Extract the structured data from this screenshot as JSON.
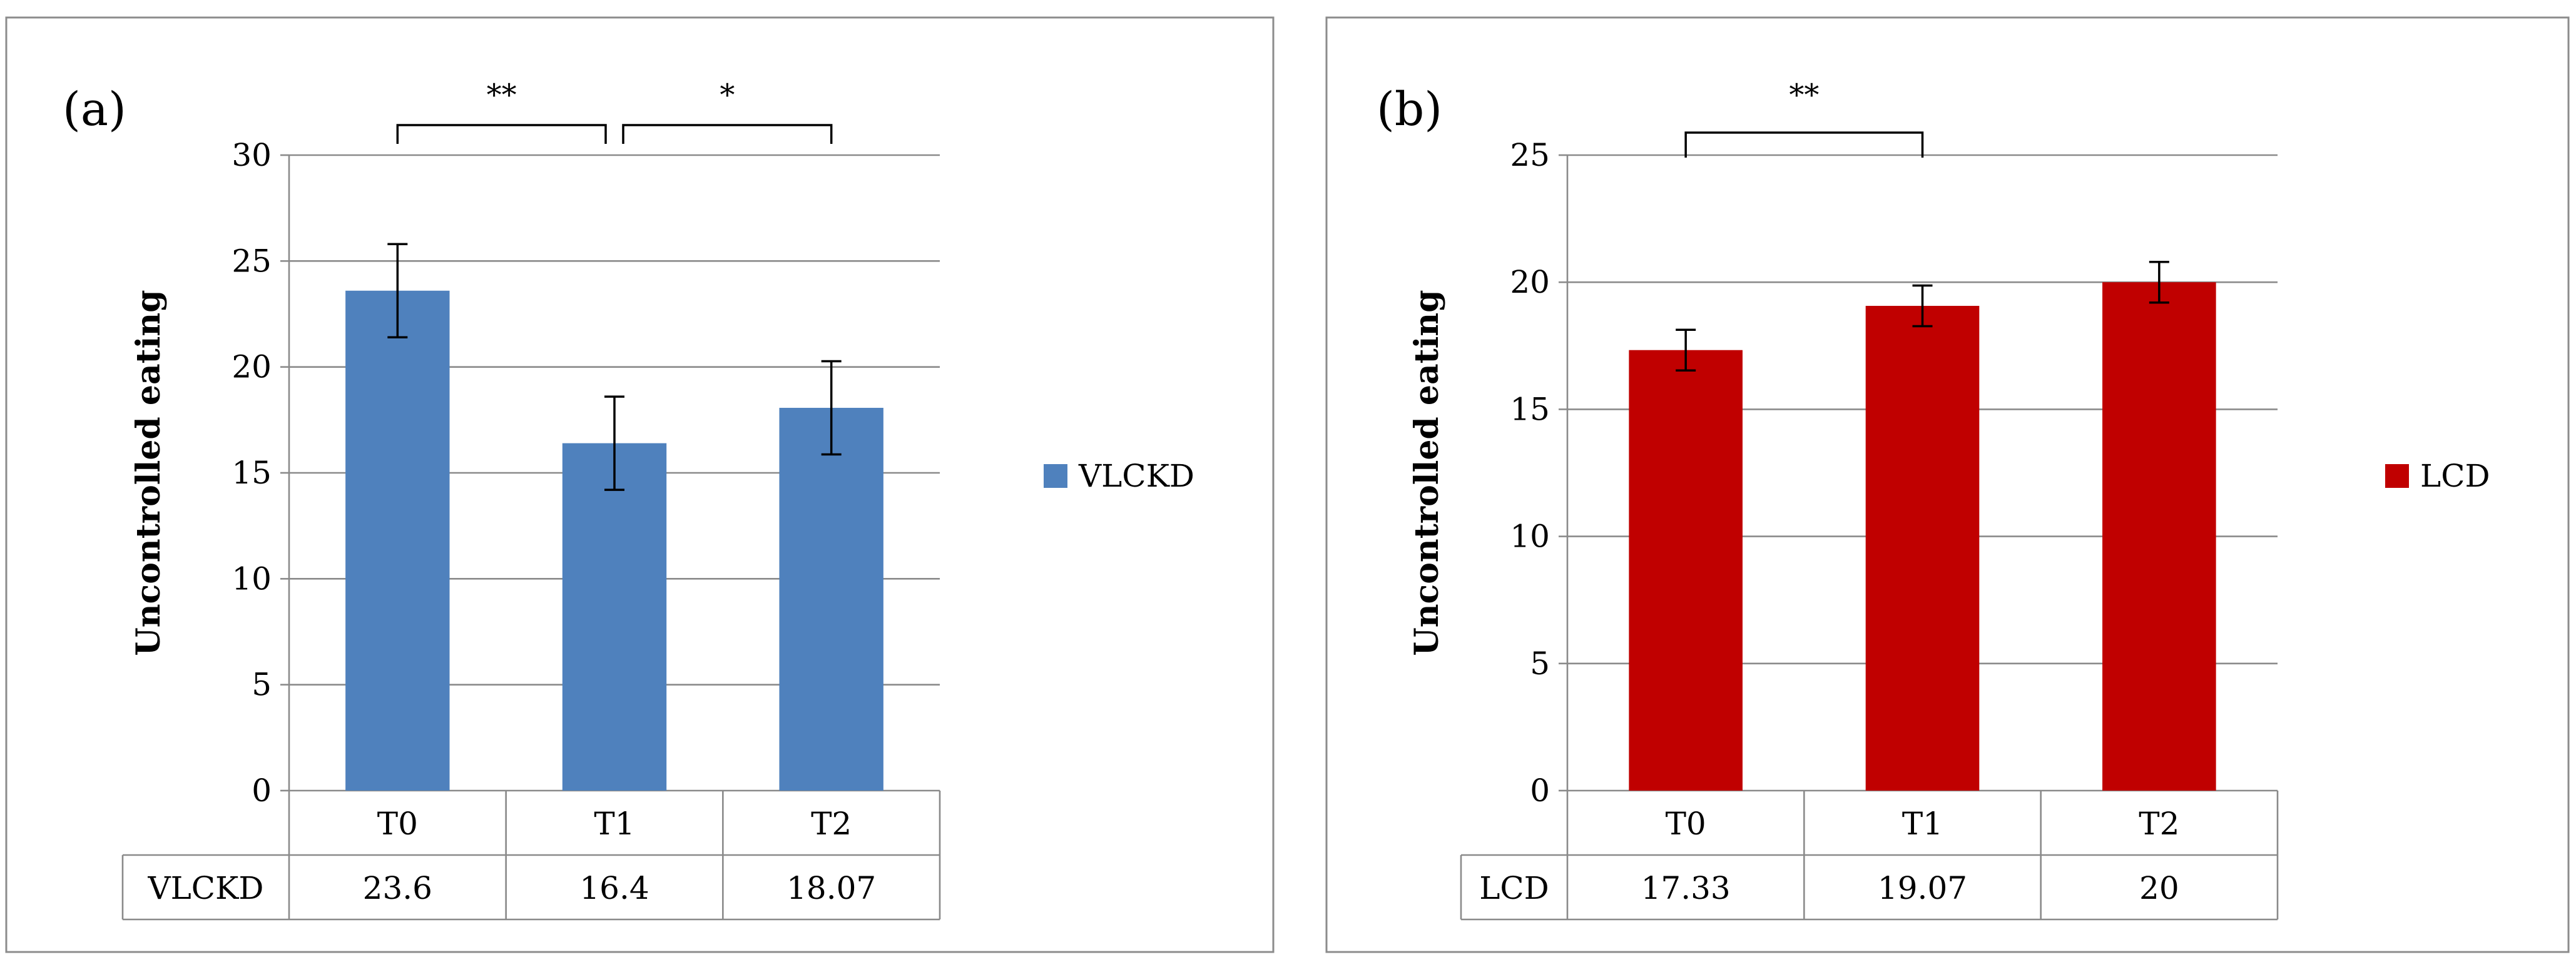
{
  "chart_data": [
    {
      "type": "bar",
      "panel_label": "(a)",
      "categories": [
        "T0",
        "T1",
        "T2"
      ],
      "series": [
        {
          "name": "VLCKD",
          "values": [
            23.6,
            16.4,
            18.07
          ],
          "color": "#4f81bd"
        }
      ],
      "errors": [
        2.2,
        2.2,
        2.2
      ],
      "ylabel": "Uncontrolled eating",
      "ylim": [
        0,
        30
      ],
      "yticks": [
        0,
        5,
        10,
        15,
        20,
        25,
        30
      ],
      "legend": "right",
      "table": {
        "row_label": "VLCKD",
        "cells": [
          "23.6",
          "16.4",
          "18.07"
        ]
      },
      "annotations": [
        {
          "from": 0,
          "to": 1,
          "text": "**"
        },
        {
          "from": 1,
          "to": 2,
          "text": "*"
        }
      ]
    },
    {
      "type": "bar",
      "panel_label": "(b)",
      "categories": [
        "T0",
        "T1",
        "T2"
      ],
      "series": [
        {
          "name": "LCD",
          "values": [
            17.33,
            19.07,
            20
          ],
          "color": "#c00000"
        }
      ],
      "errors": [
        0.8,
        0.8,
        0.8
      ],
      "ylabel": "Uncontrolled eating",
      "ylim": [
        0,
        25
      ],
      "yticks": [
        0,
        5,
        10,
        15,
        20,
        25
      ],
      "legend": "right",
      "table": {
        "row_label": "LCD",
        "cells": [
          "17.33",
          "19.07",
          "20"
        ]
      },
      "annotations": [
        {
          "from": 0,
          "to": 1,
          "text": "**"
        }
      ]
    }
  ]
}
